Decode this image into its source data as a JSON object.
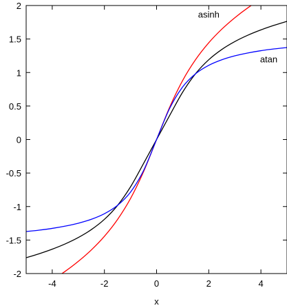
{
  "chart_data": {
    "type": "line",
    "title": "",
    "xlabel": "x",
    "ylabel": "",
    "xlim": [
      -5,
      5
    ],
    "ylim": [
      -2,
      2
    ],
    "x_ticks": [
      -4,
      -2,
      0,
      2,
      4
    ],
    "y_ticks": [
      -2,
      -1.5,
      -1,
      -0.5,
      0,
      0.5,
      1,
      1.5,
      2
    ],
    "x_tick_labels": [
      "-4",
      "-2",
      "0",
      "2",
      "4"
    ],
    "y_tick_labels": [
      "-2",
      "-1.5",
      "-1",
      "-0.5",
      "0",
      "0.5",
      "1",
      "1.5",
      "2"
    ],
    "grid": false,
    "legend": "none",
    "x": [
      -5,
      -4.5,
      -4,
      -3.5,
      -3,
      -2.5,
      -2,
      -1.5,
      -1,
      -0.5,
      0,
      0.5,
      1,
      1.5,
      2,
      2.5,
      3,
      3.5,
      4,
      4.5,
      5
    ],
    "series": [
      {
        "name": "asinh",
        "color": "#ff0000",
        "values": [
          -2.312,
          -2.209,
          -2.095,
          -1.966,
          -1.818,
          -1.647,
          -1.444,
          -1.195,
          -0.881,
          -0.481,
          0.0,
          0.481,
          0.881,
          1.195,
          1.444,
          1.647,
          1.818,
          1.966,
          2.095,
          2.209,
          2.312
        ]
      },
      {
        "color": "#000000",
        "values": [
          -1.764,
          -1.704,
          -1.636,
          -1.557,
          -1.462,
          -1.344,
          -1.191,
          -0.985,
          -0.707,
          -0.358,
          0.0,
          0.358,
          0.707,
          0.985,
          1.191,
          1.344,
          1.462,
          1.557,
          1.636,
          1.704,
          1.764
        ]
      },
      {
        "name": "atan",
        "color": "#0000ff",
        "values": [
          -1.373,
          -1.352,
          -1.326,
          -1.292,
          -1.249,
          -1.19,
          -1.107,
          -0.983,
          -0.785,
          -0.464,
          0.0,
          0.464,
          0.785,
          0.983,
          1.107,
          1.19,
          1.249,
          1.292,
          1.326,
          1.352,
          1.373
        ]
      }
    ],
    "annotations": [
      {
        "text": "asinh",
        "x": 2.0,
        "y": 1.82
      },
      {
        "text": "atan",
        "x": 4.3,
        "y": 1.15
      }
    ]
  }
}
